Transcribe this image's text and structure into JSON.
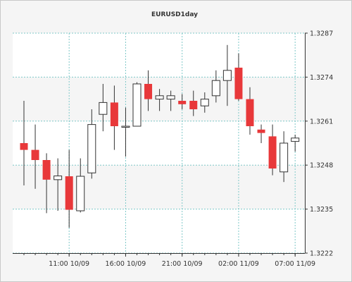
{
  "chart_data": {
    "type": "candlestick",
    "title": "EURUSD1day",
    "y_ticks": [
      "1.3287",
      "1.3274",
      "1.3261",
      "1.3248",
      "1.3235",
      "1.3222"
    ],
    "ylim": [
      1.3222,
      1.3287
    ],
    "x_ticks": [
      "11:00 10/09",
      "16:00 10/09",
      "21:00 10/09",
      "02:00 11/09",
      "07:00 11/09"
    ],
    "grid": true,
    "colors": {
      "bullish": "#ffffff",
      "bearish": "#e8383a",
      "outline": "#333333",
      "grid": "#7ec8c8",
      "band": "#ffffff",
      "panel": "#f5f5f5"
    },
    "candles": [
      {
        "o": 1.32545,
        "h": 1.3267,
        "l": 1.3242,
        "c": 1.32525
      },
      {
        "o": 1.32525,
        "h": 1.326,
        "l": 1.3241,
        "c": 1.32495
      },
      {
        "o": 1.32495,
        "h": 1.32515,
        "l": 1.32338,
        "c": 1.32437
      },
      {
        "o": 1.32437,
        "h": 1.325,
        "l": 1.32345,
        "c": 1.32448
      },
      {
        "o": 1.32447,
        "h": 1.32525,
        "l": 1.32295,
        "c": 1.32348
      },
      {
        "o": 1.32345,
        "h": 1.325,
        "l": 1.3234,
        "c": 1.32447
      },
      {
        "o": 1.32457,
        "h": 1.32645,
        "l": 1.3244,
        "c": 1.326
      },
      {
        "o": 1.3263,
        "h": 1.3272,
        "l": 1.3258,
        "c": 1.32665
      },
      {
        "o": 1.32665,
        "h": 1.32715,
        "l": 1.32525,
        "c": 1.32595
      },
      {
        "o": 1.32595,
        "h": 1.3265,
        "l": 1.32505,
        "c": 1.32595
      },
      {
        "o": 1.32595,
        "h": 1.32725,
        "l": 1.32595,
        "c": 1.3272
      },
      {
        "o": 1.3272,
        "h": 1.3276,
        "l": 1.3264,
        "c": 1.32675
      },
      {
        "o": 1.32675,
        "h": 1.32705,
        "l": 1.3264,
        "c": 1.32685
      },
      {
        "o": 1.32675,
        "h": 1.327,
        "l": 1.3264,
        "c": 1.32685
      },
      {
        "o": 1.3267,
        "h": 1.3269,
        "l": 1.32645,
        "c": 1.3266
      },
      {
        "o": 1.3267,
        "h": 1.327,
        "l": 1.32625,
        "c": 1.32645
      },
      {
        "o": 1.32655,
        "h": 1.32695,
        "l": 1.32635,
        "c": 1.32675
      },
      {
        "o": 1.32685,
        "h": 1.3276,
        "l": 1.32665,
        "c": 1.3273
      },
      {
        "o": 1.3273,
        "h": 1.32835,
        "l": 1.32655,
        "c": 1.3276
      },
      {
        "o": 1.32768,
        "h": 1.3281,
        "l": 1.3267,
        "c": 1.32675
      },
      {
        "o": 1.32675,
        "h": 1.3271,
        "l": 1.3257,
        "c": 1.32595
      },
      {
        "o": 1.32585,
        "h": 1.326,
        "l": 1.32545,
        "c": 1.32575
      },
      {
        "o": 1.32565,
        "h": 1.326,
        "l": 1.3245,
        "c": 1.3247
      },
      {
        "o": 1.3246,
        "h": 1.3258,
        "l": 1.3243,
        "c": 1.32545
      },
      {
        "o": 1.3255,
        "h": 1.3257,
        "l": 1.3252,
        "c": 1.3256
      }
    ]
  }
}
